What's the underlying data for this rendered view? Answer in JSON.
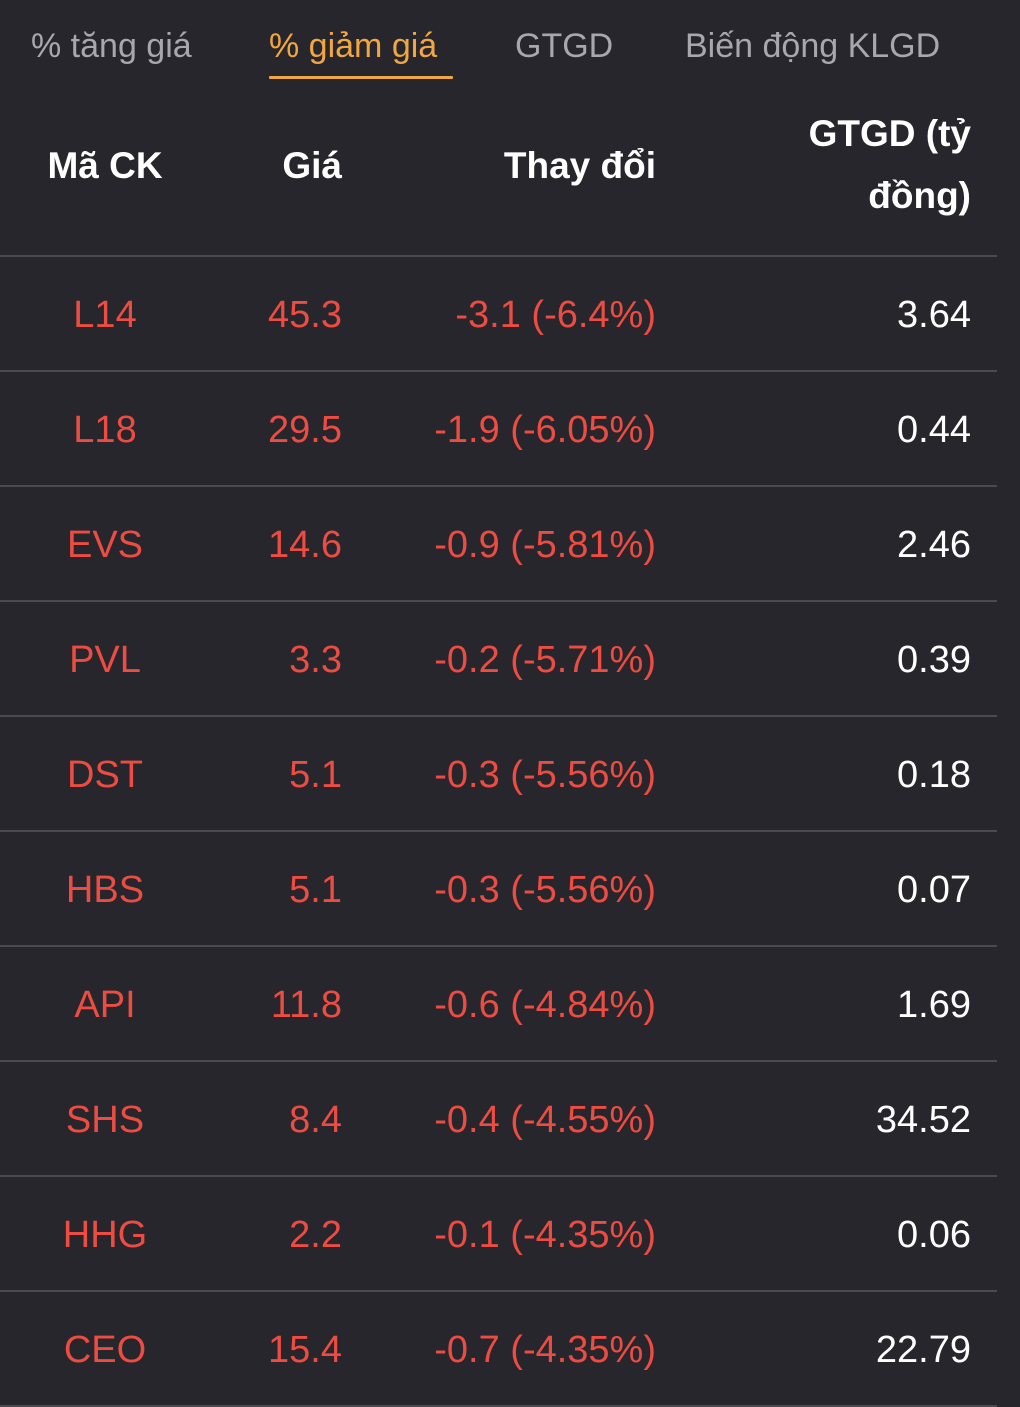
{
  "tabs": [
    {
      "label": "% tăng giá",
      "active": false
    },
    {
      "label": "% giảm giá",
      "active": true
    },
    {
      "label": "GTGD",
      "active": false
    },
    {
      "label": "Biến động KLGD",
      "active": false
    }
  ],
  "table": {
    "headers": {
      "code": "Mã CK",
      "price": "Giá",
      "change": "Thay đổi",
      "value_line1": "GTGD (tỷ",
      "value_line2": "đồng)"
    },
    "rows": [
      {
        "code": "L14",
        "price": "45.3",
        "change": "-3.1 (-6.4%)",
        "value": "3.64"
      },
      {
        "code": "L18",
        "price": "29.5",
        "change": "-1.9 (-6.05%)",
        "value": "0.44"
      },
      {
        "code": "EVS",
        "price": "14.6",
        "change": "-0.9 (-5.81%)",
        "value": "2.46"
      },
      {
        "code": "PVL",
        "price": "3.3",
        "change": "-0.2 (-5.71%)",
        "value": "0.39"
      },
      {
        "code": "DST",
        "price": "5.1",
        "change": "-0.3 (-5.56%)",
        "value": "0.18"
      },
      {
        "code": "HBS",
        "price": "5.1",
        "change": "-0.3 (-5.56%)",
        "value": "0.07"
      },
      {
        "code": "API",
        "price": "11.8",
        "change": "-0.6 (-4.84%)",
        "value": "1.69"
      },
      {
        "code": "SHS",
        "price": "8.4",
        "change": "-0.4 (-4.55%)",
        "value": "34.52"
      },
      {
        "code": "HHG",
        "price": "2.2",
        "change": "-0.1 (-4.35%)",
        "value": "0.06"
      },
      {
        "code": "CEO",
        "price": "15.4",
        "change": "-0.7 (-4.35%)",
        "value": "22.79"
      }
    ]
  },
  "colors": {
    "background": "#26262c",
    "active_tab": "#f0a742",
    "inactive_tab": "#a7a7ad",
    "down": "#ec4c42",
    "divider": "#4a4a52"
  }
}
